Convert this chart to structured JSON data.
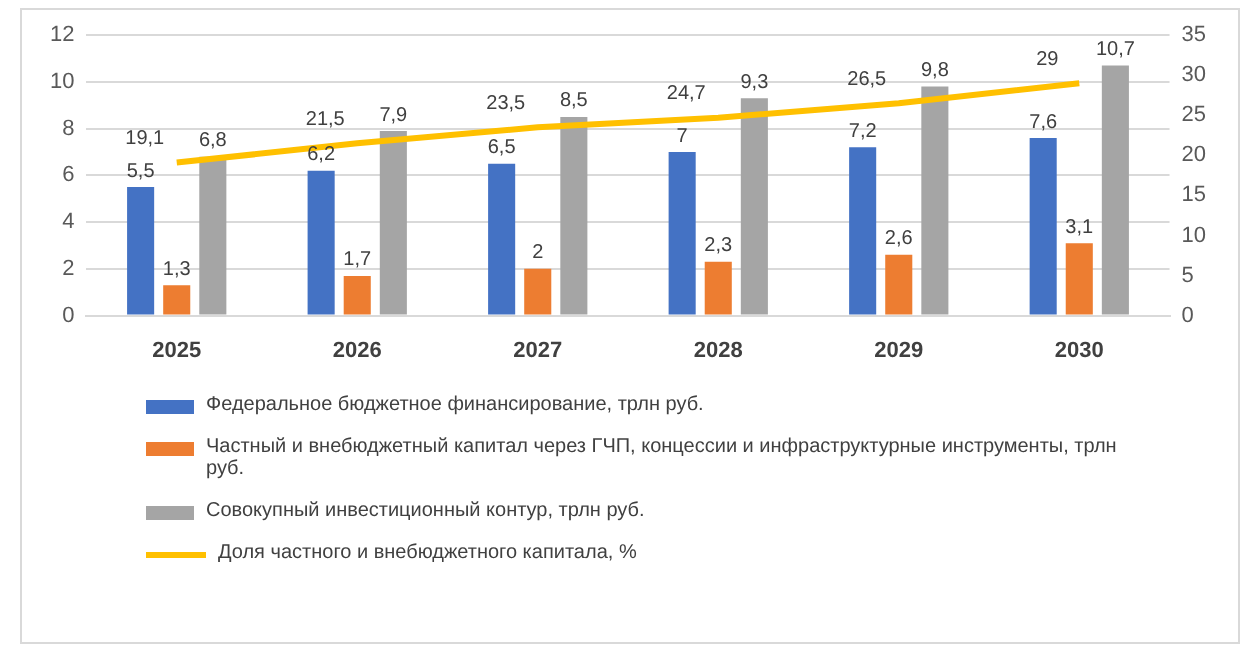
{
  "chart_data": {
    "type": "bar",
    "categories": [
      "2025",
      "2026",
      "2027",
      "2028",
      "2029",
      "2030"
    ],
    "series": [
      {
        "name": "Федеральное бюджетное финансирование, трлн руб.",
        "color": "#4472c4",
        "values": [
          5.5,
          6.2,
          6.5,
          7,
          7.2,
          7.6
        ],
        "value_labels": [
          "5,5",
          "6,2",
          "6,5",
          "7",
          "7,2",
          "7,6"
        ]
      },
      {
        "name": "Частный и внебюджетный капитал через ГЧП, концессии и инфраструктурные инструменты, трлн руб.",
        "color": "#ed7d31",
        "values": [
          1.3,
          1.7,
          2,
          2.3,
          2.6,
          3.1
        ],
        "value_labels": [
          "1,3",
          "1,7",
          "2",
          "2,3",
          "2,6",
          "3,1"
        ]
      },
      {
        "name": "Совокупный инвестиционный контур, трлн руб.",
        "color": "#a5a5a5",
        "values": [
          6.8,
          7.9,
          8.5,
          9.3,
          9.8,
          10.7
        ],
        "value_labels": [
          "6,8",
          "7,9",
          "8,5",
          "9,3",
          "9,8",
          "10,7"
        ]
      },
      {
        "name": "Доля частного и внебюджетного капитала, %",
        "color": "#ffc000",
        "type": "line",
        "axis": "y2",
        "values": [
          19.1,
          21.5,
          23.5,
          24.7,
          26.5,
          29
        ],
        "value_labels": [
          "19,1",
          "21,5",
          "23,5",
          "24,7",
          "26,5",
          "29"
        ]
      }
    ],
    "ylim": [
      0,
      12
    ],
    "yticks": [
      0,
      2,
      4,
      6,
      8,
      10,
      12
    ],
    "y2lim": [
      0,
      35
    ],
    "y2ticks": [
      0,
      5,
      10,
      15,
      20,
      25,
      30,
      35
    ],
    "grid": "y",
    "legend": "bottom",
    "marker": "none"
  }
}
